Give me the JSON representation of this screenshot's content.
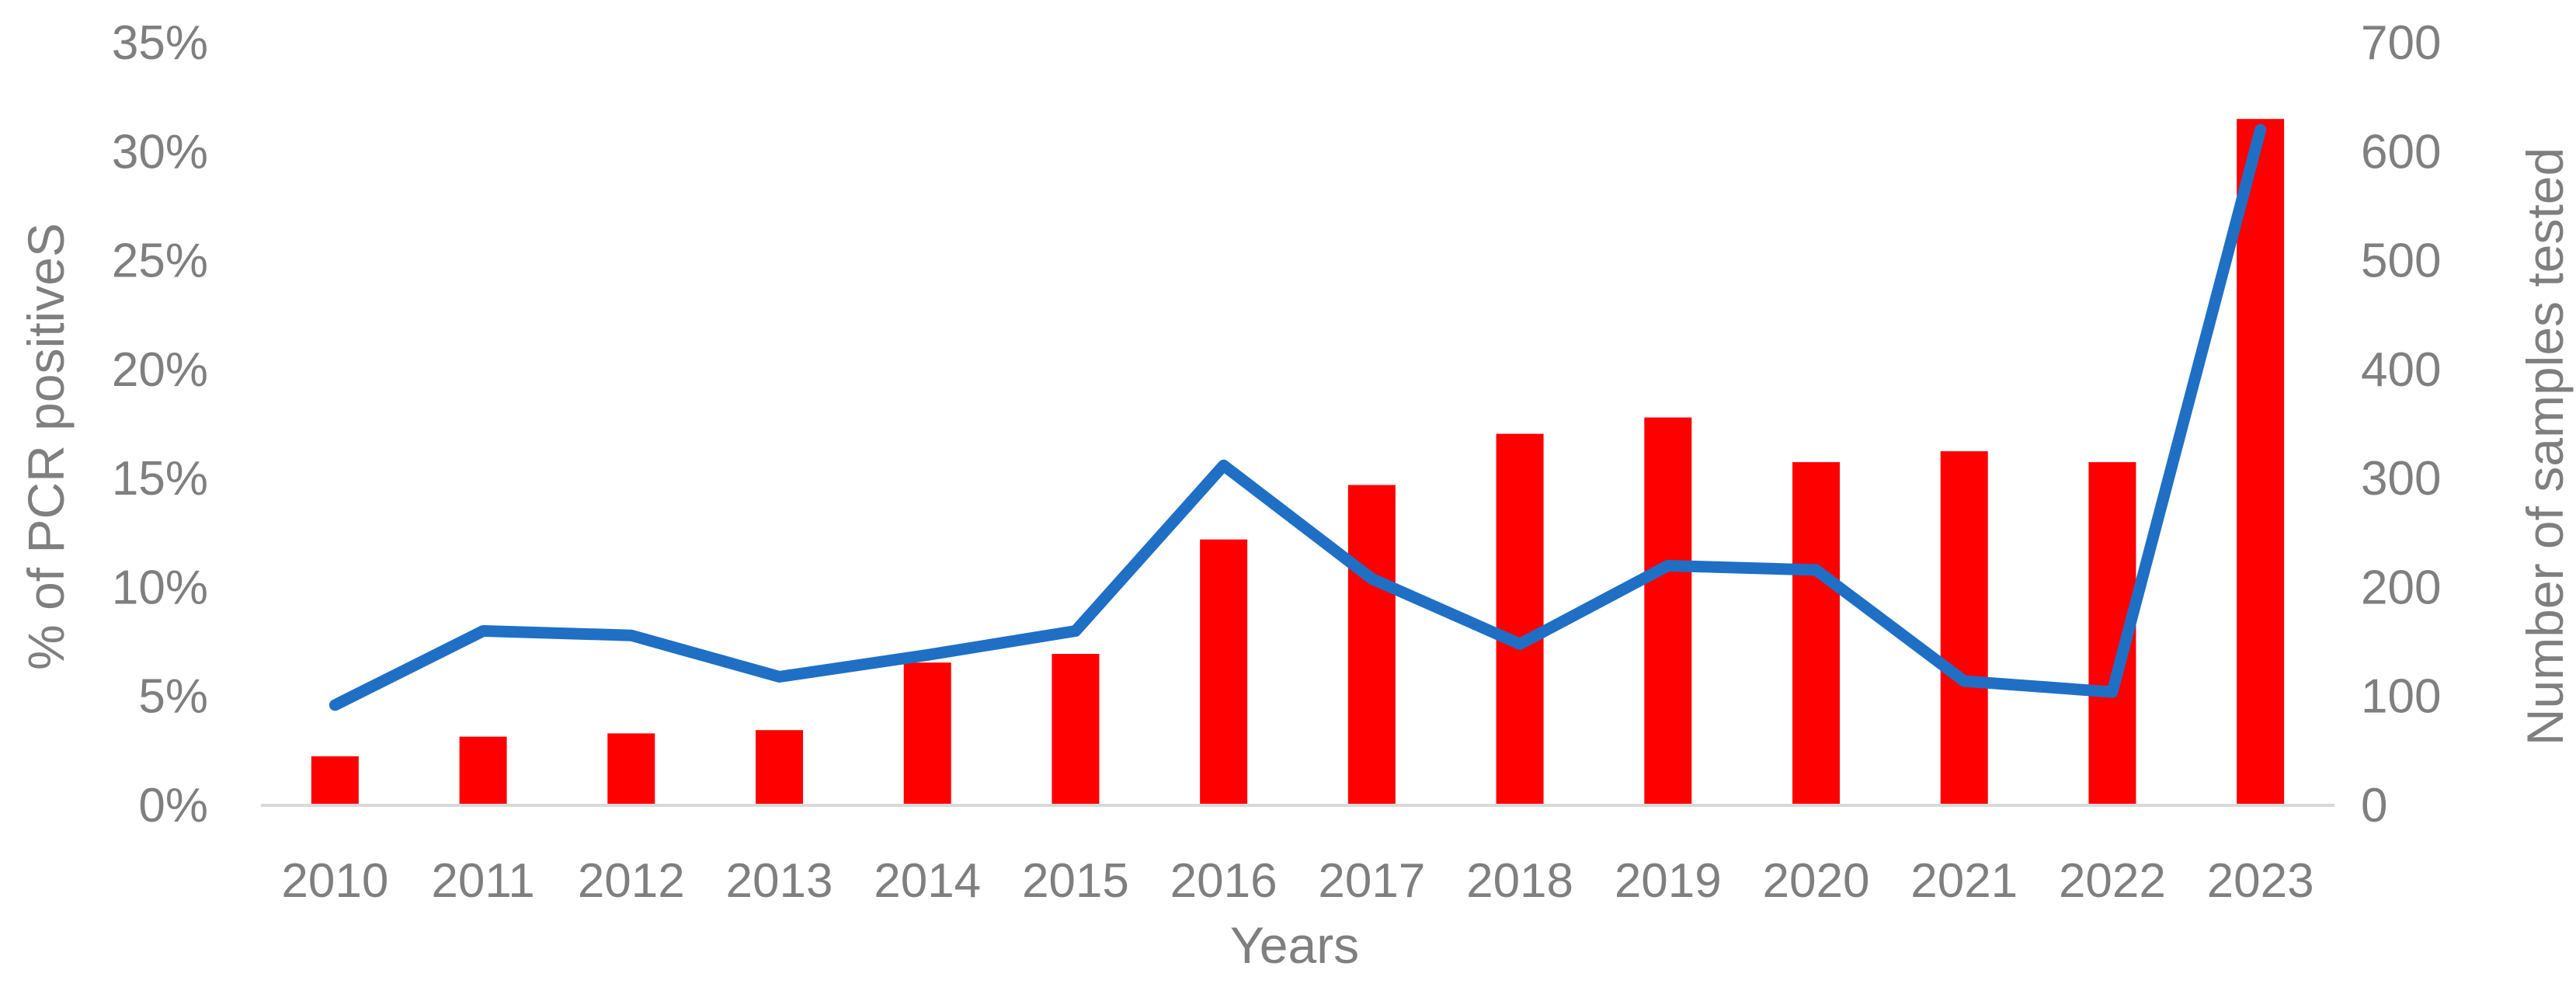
{
  "chart_data": {
    "type": "bar+line",
    "title": "",
    "xlabel": "Years",
    "ylabel_left": "% of PCR positiveS",
    "ylabel_right": "Number of samples tested",
    "categories": [
      "2010",
      "2011",
      "2012",
      "2013",
      "2014",
      "2015",
      "2016",
      "2017",
      "2018",
      "2019",
      "2020",
      "2021",
      "2022",
      "2023"
    ],
    "ylim_left": [
      0,
      35
    ],
    "ylim_right": [
      0,
      700
    ],
    "yticks_left": [
      "0%",
      "5%",
      "10%",
      "15%",
      "20%",
      "25%",
      "30%",
      "35%"
    ],
    "yticks_right": [
      "0",
      "100",
      "200",
      "300",
      "400",
      "500",
      "600",
      "700"
    ],
    "grid": false,
    "legend": "none",
    "series": [
      {
        "type": "bar",
        "axis": "right",
        "color": "#ff0000",
        "values": [
          45,
          63,
          66,
          69,
          131,
          139,
          244,
          294,
          341,
          356,
          315,
          325,
          315,
          630
        ]
      },
      {
        "type": "line",
        "axis": "left",
        "color": "#1f6fc5",
        "values": [
          4.6,
          8.0,
          7.8,
          5.9,
          6.9,
          8.0,
          15.6,
          10.4,
          7.4,
          11.0,
          10.8,
          5.7,
          5.2,
          31.0
        ]
      }
    ]
  }
}
